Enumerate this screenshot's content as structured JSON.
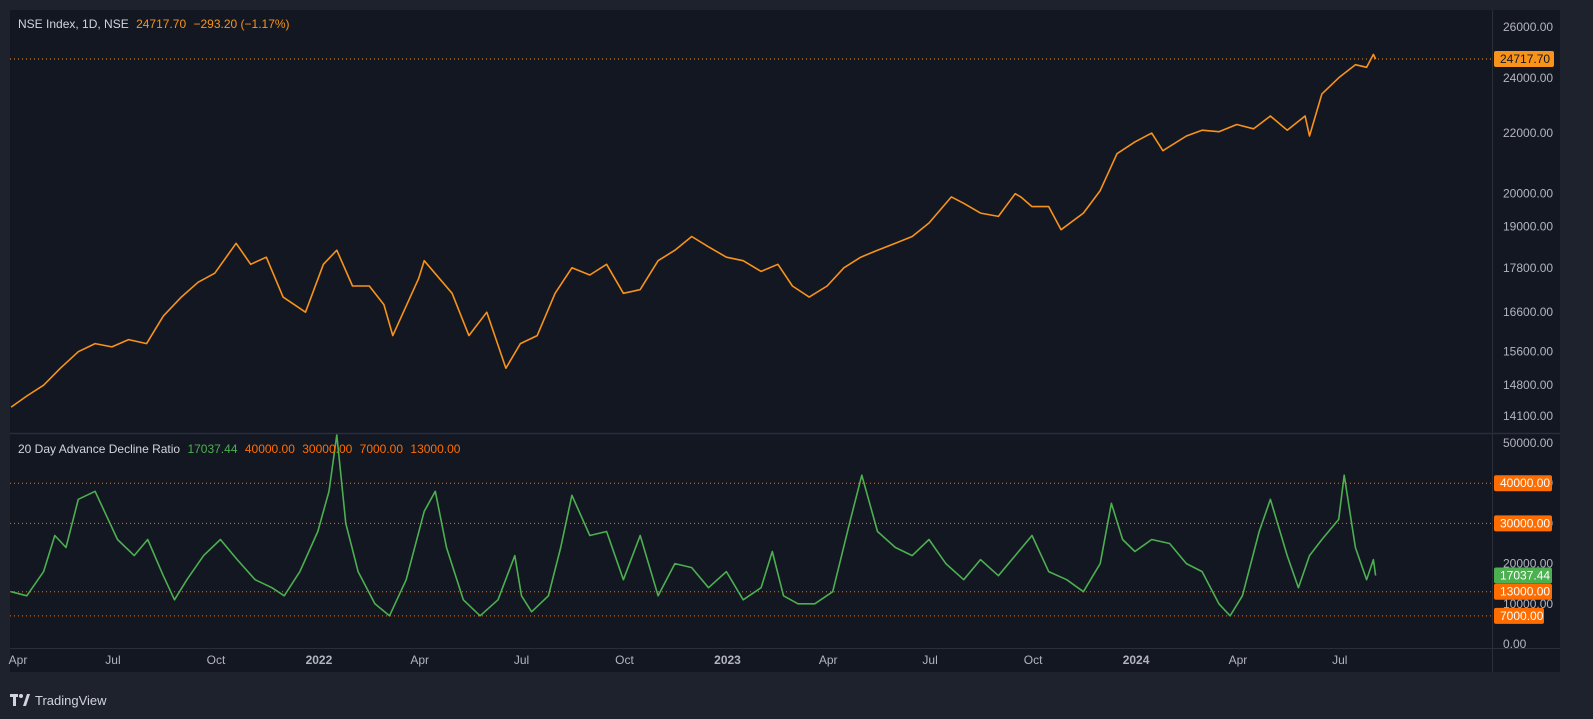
{
  "chart_data": [
    {
      "type": "line",
      "title": "NSE Index, 1D, NSE",
      "last_value": "24717.70",
      "change": "−293.20 (−1.17%)",
      "price_label": "24717.70",
      "y_ticks": [
        "26000.00",
        "24000.00",
        "22000.00",
        "20000.00",
        "19000.00",
        "17800.00",
        "16600.00",
        "15600.00",
        "14800.00",
        "14100.00"
      ],
      "y_scale": "log",
      "ylim": [
        13750,
        26700
      ],
      "series": [
        {
          "color": "#f7931a",
          "points": [
            [
              "2021-04-01",
              14300
            ],
            [
              "2021-04-15",
              14550
            ],
            [
              "2021-04-30",
              14800
            ],
            [
              "2021-05-15",
              15200
            ],
            [
              "2021-05-31",
              15600
            ],
            [
              "2021-06-15",
              15800
            ],
            [
              "2021-06-30",
              15720
            ],
            [
              "2021-07-15",
              15900
            ],
            [
              "2021-07-31",
              15800
            ],
            [
              "2021-08-15",
              16500
            ],
            [
              "2021-08-31",
              17000
            ],
            [
              "2021-09-15",
              17400
            ],
            [
              "2021-09-30",
              17650
            ],
            [
              "2021-10-19",
              18500
            ],
            [
              "2021-11-01",
              17900
            ],
            [
              "2021-11-15",
              18100
            ],
            [
              "2021-11-30",
              17000
            ],
            [
              "2021-12-20",
              16600
            ],
            [
              "2022-01-05",
              17900
            ],
            [
              "2022-01-17",
              18300
            ],
            [
              "2022-01-31",
              17300
            ],
            [
              "2022-02-15",
              17300
            ],
            [
              "2022-02-28",
              16800
            ],
            [
              "2022-03-08",
              16000
            ],
            [
              "2022-03-31",
              17500
            ],
            [
              "2022-04-05",
              18000
            ],
            [
              "2022-04-30",
              17100
            ],
            [
              "2022-05-15",
              16000
            ],
            [
              "2022-05-31",
              16600
            ],
            [
              "2022-06-17",
              15200
            ],
            [
              "2022-06-30",
              15800
            ],
            [
              "2022-07-15",
              16000
            ],
            [
              "2022-07-31",
              17100
            ],
            [
              "2022-08-15",
              17800
            ],
            [
              "2022-08-31",
              17600
            ],
            [
              "2022-09-15",
              17900
            ],
            [
              "2022-09-30",
              17100
            ],
            [
              "2022-10-15",
              17200
            ],
            [
              "2022-10-31",
              18000
            ],
            [
              "2022-11-15",
              18300
            ],
            [
              "2022-11-30",
              18700
            ],
            [
              "2022-12-15",
              18400
            ],
            [
              "2022-12-31",
              18100
            ],
            [
              "2023-01-15",
              18000
            ],
            [
              "2023-01-31",
              17700
            ],
            [
              "2023-02-15",
              17900
            ],
            [
              "2023-02-28",
              17300
            ],
            [
              "2023-03-15",
              17000
            ],
            [
              "2023-03-31",
              17300
            ],
            [
              "2023-04-15",
              17800
            ],
            [
              "2023-04-30",
              18100
            ],
            [
              "2023-05-15",
              18300
            ],
            [
              "2023-05-31",
              18500
            ],
            [
              "2023-06-15",
              18700
            ],
            [
              "2023-06-30",
              19100
            ],
            [
              "2023-07-20",
              19900
            ],
            [
              "2023-07-31",
              19700
            ],
            [
              "2023-08-15",
              19400
            ],
            [
              "2023-08-31",
              19300
            ],
            [
              "2023-09-15",
              20000
            ],
            [
              "2023-09-20",
              19900
            ],
            [
              "2023-09-30",
              19600
            ],
            [
              "2023-10-15",
              19600
            ],
            [
              "2023-10-26",
              18900
            ],
            [
              "2023-11-15",
              19400
            ],
            [
              "2023-11-30",
              20100
            ],
            [
              "2023-12-15",
              21300
            ],
            [
              "2023-12-31",
              21700
            ],
            [
              "2024-01-15",
              22000
            ],
            [
              "2024-01-25",
              21400
            ],
            [
              "2024-02-15",
              21900
            ],
            [
              "2024-02-29",
              22100
            ],
            [
              "2024-03-15",
              22050
            ],
            [
              "2024-03-31",
              22300
            ],
            [
              "2024-04-15",
              22150
            ],
            [
              "2024-04-30",
              22600
            ],
            [
              "2024-05-15",
              22100
            ],
            [
              "2024-05-31",
              22600
            ],
            [
              "2024-06-04",
              21900
            ],
            [
              "2024-06-15",
              23400
            ],
            [
              "2024-06-30",
              24000
            ],
            [
              "2024-07-15",
              24500
            ],
            [
              "2024-07-25",
              24400
            ],
            [
              "2024-07-31",
              24900
            ],
            [
              "2024-08-02",
              24717.7
            ]
          ]
        }
      ]
    },
    {
      "type": "line",
      "title": "20 Day Advance Decline Ratio",
      "values_text": [
        "17037.44",
        "40000.00",
        "30000.00",
        "7000.00",
        "13000.00"
      ],
      "values_colors": [
        "#4caf50",
        "#ff6d00",
        "#ff6d00",
        "#ff6d00",
        "#ff6d00"
      ],
      "y_ticks": [
        "50000.00",
        "40000.00",
        "30000.00",
        "20000.00",
        "10000.00",
        "0.00"
      ],
      "levels": [
        {
          "value": 40000,
          "label": "40000.00"
        },
        {
          "value": 30000,
          "label": "30000.00"
        },
        {
          "value": 13000,
          "label": "13000.00"
        },
        {
          "value": 7000,
          "label": "7000.00"
        }
      ],
      "last_label": "17037.44",
      "ylim": [
        -1000,
        52000
      ],
      "series": [
        {
          "color": "#4caf50",
          "points": [
            [
              "2021-04-01",
              13000
            ],
            [
              "2021-04-15",
              12000
            ],
            [
              "2021-04-30",
              18000
            ],
            [
              "2021-05-10",
              27000
            ],
            [
              "2021-05-20",
              24000
            ],
            [
              "2021-05-31",
              36000
            ],
            [
              "2021-06-15",
              38000
            ],
            [
              "2021-06-25",
              32000
            ],
            [
              "2021-07-05",
              26000
            ],
            [
              "2021-07-20",
              22000
            ],
            [
              "2021-08-01",
              26000
            ],
            [
              "2021-08-15",
              17000
            ],
            [
              "2021-08-25",
              11000
            ],
            [
              "2021-09-05",
              16000
            ],
            [
              "2021-09-20",
              22000
            ],
            [
              "2021-10-05",
              26000
            ],
            [
              "2021-10-20",
              21000
            ],
            [
              "2021-11-05",
              16000
            ],
            [
              "2021-11-20",
              14000
            ],
            [
              "2021-12-01",
              12000
            ],
            [
              "2021-12-15",
              18000
            ],
            [
              "2021-12-31",
              28000
            ],
            [
              "2022-01-10",
              38000
            ],
            [
              "2022-01-17",
              52000
            ],
            [
              "2022-01-25",
              30000
            ],
            [
              "2022-02-05",
              18000
            ],
            [
              "2022-02-20",
              10000
            ],
            [
              "2022-03-05",
              7000
            ],
            [
              "2022-03-20",
              16000
            ],
            [
              "2022-04-05",
              33000
            ],
            [
              "2022-04-15",
              38000
            ],
            [
              "2022-04-25",
              24000
            ],
            [
              "2022-05-10",
              11000
            ],
            [
              "2022-05-25",
              7000
            ],
            [
              "2022-06-10",
              11000
            ],
            [
              "2022-06-25",
              22000
            ],
            [
              "2022-07-01",
              12000
            ],
            [
              "2022-07-10",
              8000
            ],
            [
              "2022-07-25",
              12000
            ],
            [
              "2022-08-05",
              24000
            ],
            [
              "2022-08-15",
              37000
            ],
            [
              "2022-08-31",
              27000
            ],
            [
              "2022-09-15",
              28000
            ],
            [
              "2022-09-30",
              16000
            ],
            [
              "2022-10-15",
              27000
            ],
            [
              "2022-10-31",
              12000
            ],
            [
              "2022-11-15",
              20000
            ],
            [
              "2022-11-30",
              19000
            ],
            [
              "2022-12-15",
              14000
            ],
            [
              "2022-12-31",
              18000
            ],
            [
              "2023-01-15",
              11000
            ],
            [
              "2023-01-31",
              14000
            ],
            [
              "2023-02-10",
              23000
            ],
            [
              "2023-02-20",
              12000
            ],
            [
              "2023-03-05",
              10000
            ],
            [
              "2023-03-20",
              10000
            ],
            [
              "2023-04-05",
              13000
            ],
            [
              "2023-04-20",
              30000
            ],
            [
              "2023-05-01",
              42000
            ],
            [
              "2023-05-15",
              28000
            ],
            [
              "2023-05-31",
              24000
            ],
            [
              "2023-06-15",
              22000
            ],
            [
              "2023-06-30",
              26000
            ],
            [
              "2023-07-15",
              20000
            ],
            [
              "2023-07-31",
              16000
            ],
            [
              "2023-08-15",
              21000
            ],
            [
              "2023-08-31",
              17000
            ],
            [
              "2023-09-15",
              22000
            ],
            [
              "2023-09-30",
              27000
            ],
            [
              "2023-10-15",
              18000
            ],
            [
              "2023-10-31",
              16000
            ],
            [
              "2023-11-15",
              13000
            ],
            [
              "2023-11-30",
              20000
            ],
            [
              "2023-12-10",
              35000
            ],
            [
              "2023-12-20",
              26000
            ],
            [
              "2023-12-31",
              23000
            ],
            [
              "2024-01-15",
              26000
            ],
            [
              "2024-01-31",
              25000
            ],
            [
              "2024-02-15",
              20000
            ],
            [
              "2024-02-29",
              18000
            ],
            [
              "2024-03-15",
              10000
            ],
            [
              "2024-03-25",
              7000
            ],
            [
              "2024-04-05",
              12000
            ],
            [
              "2024-04-20",
              28000
            ],
            [
              "2024-04-30",
              36000
            ],
            [
              "2024-05-15",
              22000
            ],
            [
              "2024-05-25",
              14000
            ],
            [
              "2024-06-04",
              22000
            ],
            [
              "2024-06-15",
              26000
            ],
            [
              "2024-06-30",
              31000
            ],
            [
              "2024-07-05",
              42000
            ],
            [
              "2024-07-15",
              24000
            ],
            [
              "2024-07-25",
              16000
            ],
            [
              "2024-07-31",
              21000
            ],
            [
              "2024-08-02",
              17037.44
            ]
          ]
        }
      ]
    }
  ],
  "x_axis": {
    "ticks": [
      {
        "label": "Apr",
        "date": "2021-04-01",
        "bold": false
      },
      {
        "label": "Jul",
        "date": "2021-07-01",
        "bold": false
      },
      {
        "label": "Oct",
        "date": "2021-10-01",
        "bold": false
      },
      {
        "label": "2022",
        "date": "2022-01-01",
        "bold": true
      },
      {
        "label": "Apr",
        "date": "2022-04-01",
        "bold": false
      },
      {
        "label": "Jul",
        "date": "2022-07-01",
        "bold": false
      },
      {
        "label": "Oct",
        "date": "2022-10-01",
        "bold": false
      },
      {
        "label": "2023",
        "date": "2023-01-01",
        "bold": true
      },
      {
        "label": "Apr",
        "date": "2023-04-01",
        "bold": false
      },
      {
        "label": "Jul",
        "date": "2023-07-01",
        "bold": false
      },
      {
        "label": "Oct",
        "date": "2023-10-01",
        "bold": false
      },
      {
        "label": "2024",
        "date": "2024-01-01",
        "bold": true
      },
      {
        "label": "Apr",
        "date": "2024-04-01",
        "bold": false
      },
      {
        "label": "Jul",
        "date": "2024-07-01",
        "bold": false
      }
    ],
    "range": [
      "2021-03-31",
      "2024-11-14"
    ]
  },
  "brand": {
    "name": "TradingView"
  },
  "colors": {
    "background": "#131722",
    "frame": "#1e222d",
    "price_line": "#f7931a",
    "adr_line": "#4caf50",
    "level_line": "#ff6d00",
    "axis_text": "#b2b5be"
  }
}
